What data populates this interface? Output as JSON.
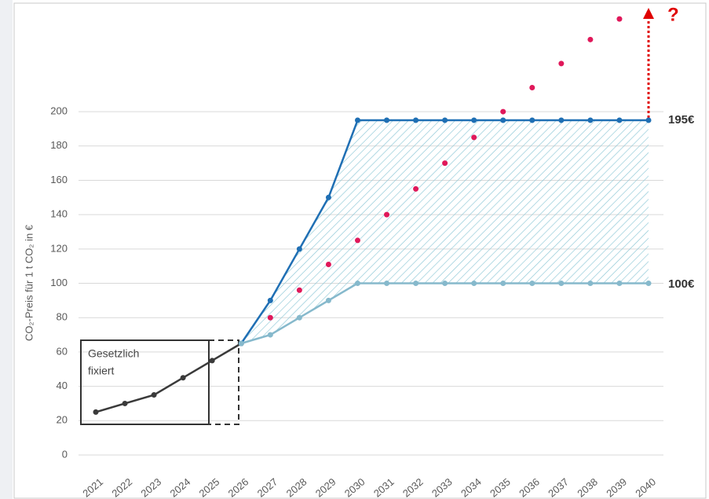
{
  "chart_data": {
    "type": "line",
    "y_label": "CO₂-Preis für 1 t CO₂ in €",
    "categories": [
      "2021",
      "2022",
      "2023",
      "2024",
      "2025",
      "2026",
      "2027",
      "2028",
      "2029",
      "2030",
      "2031",
      "2032",
      "2033",
      "2034",
      "2035",
      "2036",
      "2037",
      "2038",
      "2039",
      "2040"
    ],
    "series": [
      {
        "color": "#3a3a3a",
        "mode": "lines",
        "values": [
          25,
          30,
          35,
          45,
          55,
          65,
          null,
          null,
          null,
          null,
          null,
          null,
          null,
          null,
          null,
          null,
          null,
          null,
          null,
          null
        ]
      },
      {
        "color": "#1f6fb4",
        "mode": "lines",
        "values": [
          null,
          null,
          null,
          null,
          null,
          65,
          90,
          120,
          150,
          195,
          195,
          195,
          195,
          195,
          195,
          195,
          195,
          195,
          195,
          195
        ]
      },
      {
        "color": "#86b9cc",
        "mode": "lines",
        "values": [
          null,
          null,
          null,
          null,
          null,
          65,
          70,
          80,
          90,
          100,
          100,
          100,
          100,
          100,
          100,
          100,
          100,
          100,
          100,
          100
        ]
      },
      {
        "color": "#e0185a",
        "mode": "markers",
        "values": [
          null,
          null,
          null,
          null,
          null,
          null,
          80,
          96,
          111,
          125,
          140,
          155,
          170,
          185,
          200,
          214,
          228,
          242,
          254,
          null
        ]
      }
    ],
    "ylim": [
      0,
      260
    ],
    "yticks": [
      0,
      20,
      40,
      60,
      80,
      100,
      120,
      140,
      160,
      180,
      200
    ],
    "grid": true,
    "annotations": {
      "upper": "195€",
      "lower": "100€",
      "question": "?",
      "fixed_line1": "Gesetzlich",
      "fixed_line2": "fixiert"
    }
  }
}
